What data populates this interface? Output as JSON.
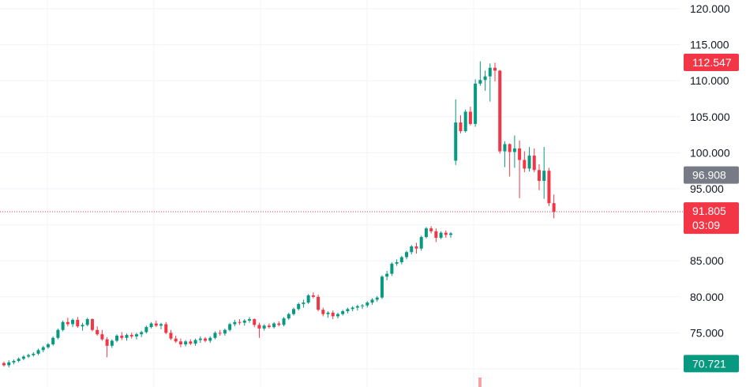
{
  "chart_data": {
    "type": "candlestick",
    "y_axis": {
      "position": "right",
      "range": [
        69.8,
        121.0
      ],
      "ticks": [
        "120.000",
        "115.000",
        "110.000",
        "105.000",
        "100.000",
        "95.000",
        "85.000",
        "80.000",
        "75.000"
      ]
    },
    "grid": true,
    "price_labels": {
      "high": {
        "text": "112.547",
        "value": 112.547
      },
      "mid": {
        "text": "96.908",
        "value": 96.908
      },
      "current": {
        "text": "91.805",
        "value": 91.805,
        "timer": "03:09"
      },
      "low": {
        "text": "70.721",
        "value": 70.721
      }
    },
    "candles": [
      [
        70.8,
        71.0,
        70.3,
        70.5
      ],
      [
        70.5,
        71.2,
        70.2,
        70.9
      ],
      [
        70.9,
        71.3,
        70.6,
        71.1
      ],
      [
        71.1,
        71.6,
        70.9,
        71.4
      ],
      [
        71.4,
        71.9,
        71.2,
        71.7
      ],
      [
        71.7,
        72.1,
        71.5,
        71.9
      ],
      [
        71.9,
        72.3,
        71.7,
        72.1
      ],
      [
        72.1,
        72.8,
        71.9,
        72.6
      ],
      [
        72.6,
        73.2,
        72.3,
        73.0
      ],
      [
        73.0,
        73.6,
        72.8,
        73.4
      ],
      [
        73.4,
        74.5,
        73.2,
        74.3
      ],
      [
        74.3,
        75.6,
        74.1,
        75.4
      ],
      [
        75.4,
        76.7,
        75.2,
        76.5
      ],
      [
        76.5,
        77.1,
        75.9,
        76.2
      ],
      [
        76.2,
        77.0,
        75.8,
        76.8
      ],
      [
        76.8,
        77.2,
        75.7,
        75.9
      ],
      [
        75.9,
        76.4,
        75.3,
        76.1
      ],
      [
        76.1,
        77.1,
        75.9,
        76.9
      ],
      [
        76.9,
        77.0,
        75.2,
        75.4
      ],
      [
        75.4,
        75.9,
        74.6,
        74.8
      ],
      [
        74.8,
        75.4,
        73.9,
        74.1
      ],
      [
        74.1,
        74.4,
        71.6,
        73.2
      ],
      [
        73.2,
        74.1,
        72.9,
        73.9
      ],
      [
        73.9,
        74.8,
        73.7,
        74.6
      ],
      [
        74.6,
        75.1,
        74.0,
        74.3
      ],
      [
        74.3,
        74.9,
        73.9,
        74.7
      ],
      [
        74.7,
        75.0,
        74.2,
        74.5
      ],
      [
        74.5,
        75.0,
        74.1,
        74.8
      ],
      [
        74.8,
        75.3,
        74.4,
        75.1
      ],
      [
        75.1,
        76.0,
        74.9,
        75.8
      ],
      [
        75.8,
        76.5,
        75.6,
        76.3
      ],
      [
        76.3,
        76.7,
        75.8,
        76.0
      ],
      [
        76.0,
        76.4,
        75.5,
        76.2
      ],
      [
        76.2,
        76.5,
        74.8,
        75.0
      ],
      [
        75.0,
        75.4,
        74.0,
        74.2
      ],
      [
        74.2,
        74.6,
        73.6,
        73.8
      ],
      [
        73.8,
        74.2,
        73.0,
        73.4
      ],
      [
        73.4,
        74.0,
        73.1,
        73.8
      ],
      [
        73.8,
        74.1,
        73.3,
        73.5
      ],
      [
        73.5,
        74.2,
        73.2,
        74.0
      ],
      [
        74.0,
        74.5,
        73.6,
        74.2
      ],
      [
        74.2,
        74.4,
        73.7,
        73.9
      ],
      [
        73.9,
        74.5,
        73.6,
        74.3
      ],
      [
        74.3,
        75.2,
        74.1,
        75.0
      ],
      [
        75.0,
        75.4,
        74.6,
        74.9
      ],
      [
        74.9,
        75.6,
        74.6,
        75.4
      ],
      [
        75.4,
        76.4,
        75.2,
        76.2
      ],
      [
        76.2,
        76.8,
        75.9,
        76.5
      ],
      [
        76.5,
        76.9,
        76.1,
        76.4
      ],
      [
        76.4,
        76.9,
        76.0,
        76.7
      ],
      [
        76.7,
        77.2,
        76.4,
        76.9
      ],
      [
        76.9,
        77.0,
        75.8,
        76.1
      ],
      [
        76.1,
        76.4,
        74.3,
        75.6
      ],
      [
        75.6,
        76.2,
        75.3,
        76.0
      ],
      [
        76.0,
        76.3,
        75.6,
        75.8
      ],
      [
        75.8,
        76.5,
        75.6,
        76.3
      ],
      [
        76.3,
        76.6,
        75.9,
        76.1
      ],
      [
        76.1,
        77.2,
        75.9,
        77.0
      ],
      [
        77.0,
        77.8,
        76.8,
        77.6
      ],
      [
        77.6,
        78.5,
        77.4,
        78.3
      ],
      [
        78.3,
        79.2,
        78.1,
        79.0
      ],
      [
        79.0,
        79.6,
        78.5,
        79.2
      ],
      [
        79.2,
        80.4,
        79.0,
        80.2
      ],
      [
        80.2,
        80.6,
        79.8,
        80.0
      ],
      [
        80.0,
        80.3,
        78.0,
        78.2
      ],
      [
        78.2,
        78.5,
        77.3,
        77.6
      ],
      [
        77.6,
        78.0,
        77.1,
        77.8
      ],
      [
        77.8,
        78.1,
        76.9,
        77.3
      ],
      [
        77.3,
        77.8,
        77.0,
        77.6
      ],
      [
        77.6,
        78.2,
        77.4,
        78.0
      ],
      [
        78.0,
        78.5,
        77.7,
        78.3
      ],
      [
        78.3,
        78.7,
        78.0,
        78.5
      ],
      [
        78.5,
        78.9,
        78.1,
        78.7
      ],
      [
        78.7,
        79.0,
        78.3,
        78.8
      ],
      [
        78.8,
        79.4,
        78.5,
        79.2
      ],
      [
        79.2,
        79.8,
        78.9,
        79.6
      ],
      [
        79.6,
        80.1,
        79.3,
        79.9
      ],
      [
        79.9,
        83.0,
        79.7,
        82.8
      ],
      [
        82.8,
        83.6,
        82.3,
        83.2
      ],
      [
        83.2,
        84.8,
        82.9,
        84.6
      ],
      [
        84.6,
        85.2,
        84.3,
        84.8
      ],
      [
        84.8,
        85.7,
        84.5,
        85.5
      ],
      [
        85.5,
        86.4,
        85.2,
        86.2
      ],
      [
        86.2,
        87.2,
        85.9,
        87.0
      ],
      [
        87.0,
        87.5,
        86.0,
        86.7
      ],
      [
        86.7,
        88.5,
        86.4,
        88.3
      ],
      [
        88.3,
        89.7,
        88.1,
        89.5
      ],
      [
        89.5,
        89.8,
        88.8,
        89.1
      ],
      [
        89.1,
        89.5,
        87.6,
        88.2
      ],
      [
        88.2,
        89.1,
        88.0,
        88.9
      ],
      [
        88.9,
        89.2,
        88.2,
        88.6
      ],
      [
        88.6,
        89.0,
        88.2,
        88.8
      ],
      [
        98.9,
        107.4,
        98.3,
        104.2
      ],
      [
        104.2,
        105.2,
        102.7,
        103.0
      ],
      [
        103.0,
        106.0,
        102.8,
        105.7
      ],
      [
        105.7,
        106.4,
        103.8,
        104.0
      ],
      [
        104.0,
        110.2,
        103.6,
        109.6
      ],
      [
        109.6,
        112.7,
        109.3,
        110.1
      ],
      [
        110.1,
        111.4,
        108.6,
        110.6
      ],
      [
        110.6,
        112.4,
        107.1,
        111.8
      ],
      [
        111.8,
        112.5,
        109.9,
        111.4
      ],
      [
        111.4,
        111.5,
        99.9,
        100.2
      ],
      [
        100.2,
        101.6,
        98.0,
        101.2
      ],
      [
        101.2,
        101.3,
        96.7,
        100.1
      ],
      [
        100.1,
        102.4,
        97.9,
        100.6
      ],
      [
        100.6,
        101.7,
        93.7,
        99.0
      ],
      [
        99.0,
        100.2,
        97.3,
        97.8
      ],
      [
        97.8,
        100.8,
        97.4,
        99.6
      ],
      [
        99.6,
        100.6,
        97.3,
        97.6
      ],
      [
        97.6,
        98.4,
        94.8,
        96.1
      ],
      [
        96.1,
        100.8,
        93.6,
        97.5
      ],
      [
        97.5,
        97.9,
        92.6,
        93.0
      ],
      [
        93.0,
        94.2,
        90.9,
        91.805
      ]
    ]
  }
}
